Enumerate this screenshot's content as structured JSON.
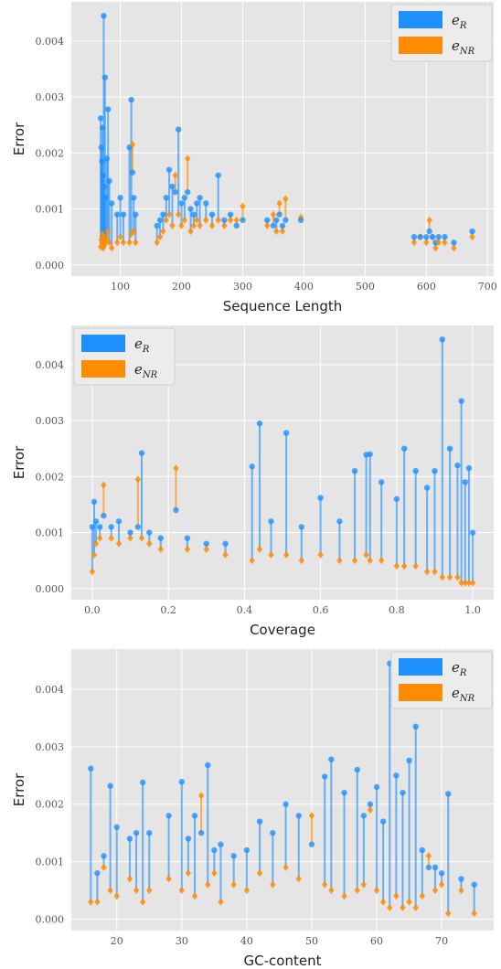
{
  "chart_data": [
    {
      "type": "scatter",
      "title": "",
      "xlabel": "Sequence Length",
      "ylabel": "Error",
      "xlim": [
        20,
        710
      ],
      "ylim": [
        -0.0002,
        0.0047
      ],
      "xticks": [
        100,
        200,
        300,
        400,
        500,
        600,
        700
      ],
      "yticks": [
        0.0,
        0.001,
        0.002,
        0.003,
        0.004
      ],
      "ytick_labels": [
        "0.000",
        "0.001",
        "0.002",
        "0.003",
        "0.004"
      ],
      "grid": true,
      "legend_position": "top-right",
      "series": [
        {
          "name": "e_R",
          "color": "#1e90ff",
          "marker": "circle"
        },
        {
          "name": "e_NR",
          "color": "#ff8c00",
          "marker": "diamond"
        }
      ],
      "points": [
        [
          68,
          0.00262,
          0.00032
        ],
        [
          69,
          0.0021,
          0.00045
        ],
        [
          70,
          0.00185,
          0.0004
        ],
        [
          71,
          0.00245,
          0.00055
        ],
        [
          72,
          0.0016,
          0.0003
        ],
        [
          73,
          0.00445,
          0.0005
        ],
        [
          74,
          0.0014,
          0.00035
        ],
        [
          75,
          0.00335,
          0.00042
        ],
        [
          76,
          0.0012,
          0.0004
        ],
        [
          78,
          0.0019,
          0.00048
        ],
        [
          80,
          0.00278,
          0.0006
        ],
        [
          82,
          0.0015,
          0.0004
        ],
        [
          86,
          0.0011,
          0.0003
        ],
        [
          95,
          0.0009,
          0.0004
        ],
        [
          100,
          0.0012,
          0.0005
        ],
        [
          105,
          0.0009,
          0.0004
        ],
        [
          115,
          0.0021,
          0.0004
        ],
        [
          118,
          0.00295,
          0.00055
        ],
        [
          120,
          0.00165,
          0.00215
        ],
        [
          122,
          0.0012,
          0.0006
        ],
        [
          125,
          0.0009,
          0.0004
        ],
        [
          160,
          0.0007,
          0.0004
        ],
        [
          165,
          0.0008,
          0.0005
        ],
        [
          170,
          0.0009,
          0.0006
        ],
        [
          175,
          0.0012,
          0.0008
        ],
        [
          180,
          0.0017,
          0.0009
        ],
        [
          185,
          0.0014,
          0.0007
        ],
        [
          190,
          0.0013,
          0.0016
        ],
        [
          195,
          0.00242,
          0.0009
        ],
        [
          200,
          0.0011,
          0.0007
        ],
        [
          205,
          0.0012,
          0.0008
        ],
        [
          210,
          0.0013,
          0.0019
        ],
        [
          215,
          0.001,
          0.0006
        ],
        [
          220,
          0.0009,
          0.0007
        ],
        [
          225,
          0.0011,
          0.0008
        ],
        [
          230,
          0.0012,
          0.0007
        ],
        [
          240,
          0.0011,
          0.0008
        ],
        [
          250,
          0.0009,
          0.0007
        ],
        [
          260,
          0.0016,
          0.0008
        ],
        [
          270,
          0.0008,
          0.0007
        ],
        [
          280,
          0.0009,
          0.0008
        ],
        [
          290,
          0.0007,
          0.0008
        ],
        [
          300,
          0.0008,
          0.00105
        ],
        [
          340,
          0.0008,
          0.0007
        ],
        [
          350,
          0.0007,
          0.0009
        ],
        [
          355,
          0.0008,
          0.0006
        ],
        [
          360,
          0.0009,
          0.0011
        ],
        [
          365,
          0.0007,
          0.0006
        ],
        [
          370,
          0.0008,
          0.00118
        ],
        [
          395,
          0.0008,
          0.00085
        ],
        [
          580,
          0.0005,
          0.0004
        ],
        [
          590,
          0.0005,
          0.0005
        ],
        [
          600,
          0.0005,
          0.0004
        ],
        [
          605,
          0.0006,
          0.0008
        ],
        [
          610,
          0.0005,
          0.0005
        ],
        [
          615,
          0.0004,
          0.0003
        ],
        [
          620,
          0.0005,
          0.0004
        ],
        [
          630,
          0.0005,
          0.0004
        ],
        [
          645,
          0.0004,
          0.0003
        ],
        [
          675,
          0.0006,
          0.0005
        ]
      ]
    },
    {
      "type": "scatter",
      "title": "",
      "xlabel": "Coverage",
      "ylabel": "Error",
      "xlim": [
        -0.055,
        1.055
      ],
      "ylim": [
        -0.0002,
        0.0047
      ],
      "xticks": [
        0.0,
        0.2,
        0.4,
        0.6,
        0.8,
        1.0
      ],
      "xtick_labels": [
        "0.0",
        "0.2",
        "0.4",
        "0.6",
        "0.8",
        "1.0"
      ],
      "yticks": [
        0.0,
        0.001,
        0.002,
        0.003,
        0.004
      ],
      "ytick_labels": [
        "0.000",
        "0.001",
        "0.002",
        "0.003",
        "0.004"
      ],
      "grid": true,
      "legend_position": "top-left",
      "series": [
        {
          "name": "e_R",
          "color": "#1e90ff",
          "marker": "circle"
        },
        {
          "name": "e_NR",
          "color": "#ff8c00",
          "marker": "diamond"
        }
      ],
      "points": [
        [
          0.0,
          0.0011,
          0.0003
        ],
        [
          0.005,
          0.00155,
          0.0006
        ],
        [
          0.01,
          0.0012,
          0.0008
        ],
        [
          0.02,
          0.0011,
          0.0009
        ],
        [
          0.03,
          0.0013,
          0.00185
        ],
        [
          0.05,
          0.0011,
          0.0009
        ],
        [
          0.07,
          0.0012,
          0.0008
        ],
        [
          0.1,
          0.001,
          0.0009
        ],
        [
          0.12,
          0.0011,
          0.00195
        ],
        [
          0.13,
          0.00242,
          0.0009
        ],
        [
          0.15,
          0.001,
          0.0008
        ],
        [
          0.18,
          0.0009,
          0.0007
        ],
        [
          0.22,
          0.0014,
          0.00215
        ],
        [
          0.25,
          0.0009,
          0.0007
        ],
        [
          0.3,
          0.0008,
          0.0007
        ],
        [
          0.35,
          0.0008,
          0.0006
        ],
        [
          0.42,
          0.00218,
          0.0005
        ],
        [
          0.44,
          0.00295,
          0.0007
        ],
        [
          0.47,
          0.0012,
          0.0006
        ],
        [
          0.51,
          0.00278,
          0.0006
        ],
        [
          0.55,
          0.0011,
          0.0005
        ],
        [
          0.6,
          0.00162,
          0.0006
        ],
        [
          0.65,
          0.0012,
          0.0005
        ],
        [
          0.69,
          0.0021,
          0.0005
        ],
        [
          0.72,
          0.00239,
          0.0006
        ],
        [
          0.73,
          0.0024,
          0.0005
        ],
        [
          0.76,
          0.0019,
          0.0005
        ],
        [
          0.8,
          0.0016,
          0.0004
        ],
        [
          0.82,
          0.0025,
          0.0004
        ],
        [
          0.85,
          0.0021,
          0.0004
        ],
        [
          0.88,
          0.0018,
          0.0003
        ],
        [
          0.9,
          0.0021,
          0.0003
        ],
        [
          0.92,
          0.00445,
          0.0002
        ],
        [
          0.94,
          0.0025,
          0.0002
        ],
        [
          0.96,
          0.0022,
          0.0002
        ],
        [
          0.97,
          0.00335,
          0.0001
        ],
        [
          0.98,
          0.0019,
          0.0001
        ],
        [
          0.99,
          0.00215,
          0.0001
        ],
        [
          1.0,
          0.001,
          0.0001
        ]
      ]
    },
    {
      "type": "scatter",
      "title": "",
      "xlabel": "GC-content",
      "ylabel": "Error",
      "xlim": [
        13,
        78
      ],
      "ylim": [
        -0.0002,
        0.0047
      ],
      "xticks": [
        20,
        30,
        40,
        50,
        60,
        70
      ],
      "yticks": [
        0.0,
        0.001,
        0.002,
        0.003,
        0.004
      ],
      "ytick_labels": [
        "0.000",
        "0.001",
        "0.002",
        "0.003",
        "0.004"
      ],
      "grid": true,
      "legend_position": "top-right",
      "series": [
        {
          "name": "e_R",
          "color": "#1e90ff",
          "marker": "circle"
        },
        {
          "name": "e_NR",
          "color": "#ff8c00",
          "marker": "diamond"
        }
      ],
      "points": [
        [
          16,
          0.00262,
          0.0003
        ],
        [
          17,
          0.0008,
          0.0003
        ],
        [
          18,
          0.0011,
          0.0009
        ],
        [
          19,
          0.00232,
          0.0005
        ],
        [
          20,
          0.0016,
          0.0004
        ],
        [
          22,
          0.0014,
          0.0007
        ],
        [
          23,
          0.0015,
          0.0005
        ],
        [
          24,
          0.00238,
          0.0003
        ],
        [
          25,
          0.0015,
          0.0005
        ],
        [
          28,
          0.0018,
          0.0007
        ],
        [
          30,
          0.00239,
          0.0005
        ],
        [
          31,
          0.0014,
          0.0008
        ],
        [
          32,
          0.0018,
          0.0004
        ],
        [
          33,
          0.0015,
          0.00215
        ],
        [
          34,
          0.00268,
          0.0006
        ],
        [
          35,
          0.0012,
          0.0008
        ],
        [
          36,
          0.0013,
          0.0003
        ],
        [
          38,
          0.0011,
          0.0006
        ],
        [
          40,
          0.0012,
          0.0005
        ],
        [
          42,
          0.0017,
          0.0008
        ],
        [
          44,
          0.0015,
          0.0006
        ],
        [
          46,
          0.002,
          0.0009
        ],
        [
          48,
          0.0018,
          0.0007
        ],
        [
          50,
          0.0013,
          0.0018
        ],
        [
          52,
          0.00248,
          0.0006
        ],
        [
          53,
          0.00278,
          0.0005
        ],
        [
          55,
          0.0022,
          0.0004
        ],
        [
          57,
          0.0026,
          0.0005
        ],
        [
          58,
          0.0018,
          0.0006
        ],
        [
          59,
          0.002,
          0.0019
        ],
        [
          60,
          0.0023,
          0.0005
        ],
        [
          61,
          0.0017,
          0.0003
        ],
        [
          62,
          0.00445,
          0.0002
        ],
        [
          63,
          0.0025,
          0.0004
        ],
        [
          64,
          0.0022,
          0.0002
        ],
        [
          65,
          0.00276,
          0.0003
        ],
        [
          66,
          0.00335,
          0.0002
        ],
        [
          67,
          0.0012,
          0.0004
        ],
        [
          68,
          0.0009,
          0.0011
        ],
        [
          69,
          0.0009,
          0.0005
        ],
        [
          70,
          0.0008,
          0.0006
        ],
        [
          71,
          0.00218,
          0.0001
        ],
        [
          73,
          0.0007,
          0.0005
        ],
        [
          75,
          0.0006,
          0.0001
        ]
      ]
    }
  ]
}
